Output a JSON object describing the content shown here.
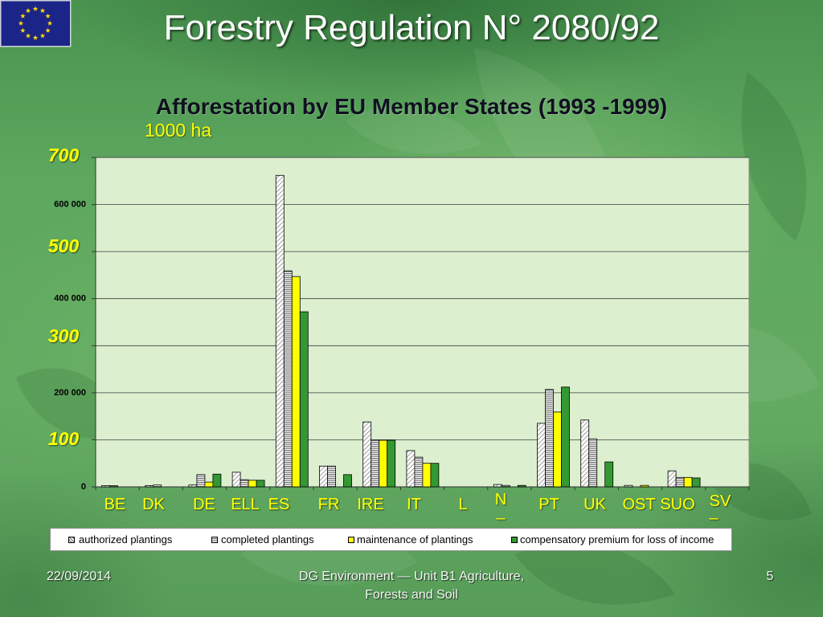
{
  "slide": {
    "title": "Forestry Regulation N° 2080/92",
    "emblem": "eu-flag-icon",
    "footer_date": "22/09/2014",
    "footer_center_line1": "DG Environment — Unit B1 Agriculture,",
    "footer_center_line2": "Forests and Soil",
    "slide_number": "5"
  },
  "colors": {
    "title_text": "#ffffff",
    "accent_yellow": "#ffff00",
    "plot_background": "#dcefcf",
    "flag_blue": "#1b2588",
    "flag_star": "#ffdd00"
  },
  "chart_data": {
    "type": "bar",
    "title": "Afforestation by EU Member States (1993 -1999)",
    "ylabel": "1000 ha",
    "xlabel": "",
    "categories": [
      "BE",
      "DK",
      "DE",
      "ELL",
      "ES",
      "FR",
      "IRE",
      "IT",
      "L",
      "N",
      "PT",
      "UK",
      "OST",
      "SUO",
      "SV"
    ],
    "category_sublabels": [
      "",
      "",
      "",
      "",
      "",
      "",
      "",
      "",
      "",
      "–",
      "",
      "",
      "",
      "",
      "–"
    ],
    "series": [
      {
        "name": "authorized plantings",
        "pattern": "diagonal-hatch",
        "values": [
          1000,
          2000,
          4000,
          31000,
          662000,
          44000,
          138000,
          77000,
          0,
          5000,
          135000,
          142000,
          3000,
          34000,
          0
        ]
      },
      {
        "name": "completed plantings",
        "pattern": "horizontal-stripes",
        "values": [
          1000,
          4000,
          26000,
          15000,
          459000,
          44000,
          99000,
          63000,
          0,
          3000,
          207000,
          102000,
          0,
          20000,
          0
        ]
      },
      {
        "name": "maintenance of plantings",
        "color": "#ffff00",
        "values": [
          0,
          0,
          10000,
          14000,
          447000,
          0,
          99000,
          50000,
          0,
          0,
          159000,
          0,
          3000,
          20000,
          0
        ]
      },
      {
        "name": "compensatory premium for loss of income",
        "color": "#339933",
        "values": [
          0,
          0,
          27000,
          14000,
          372000,
          26000,
          99000,
          50000,
          0,
          3000,
          212000,
          53000,
          0,
          19000,
          0
        ]
      }
    ],
    "ylim": [
      0,
      700000
    ],
    "grid": true,
    "grid_step": 100000,
    "y_axis_labels": [
      {
        "value": 0,
        "label": "0"
      },
      {
        "value": 200000,
        "label": "200 000"
      },
      {
        "value": 400000,
        "label": "400 000"
      },
      {
        "value": 600000,
        "label": "600 000"
      }
    ],
    "y_axis_labels_1000ha": [
      {
        "value": 100000,
        "label": "100"
      },
      {
        "value": 300000,
        "label": "300"
      },
      {
        "value": 500000,
        "label": "500"
      },
      {
        "value": 700000,
        "label": "700"
      }
    ],
    "legend": "bottom"
  }
}
